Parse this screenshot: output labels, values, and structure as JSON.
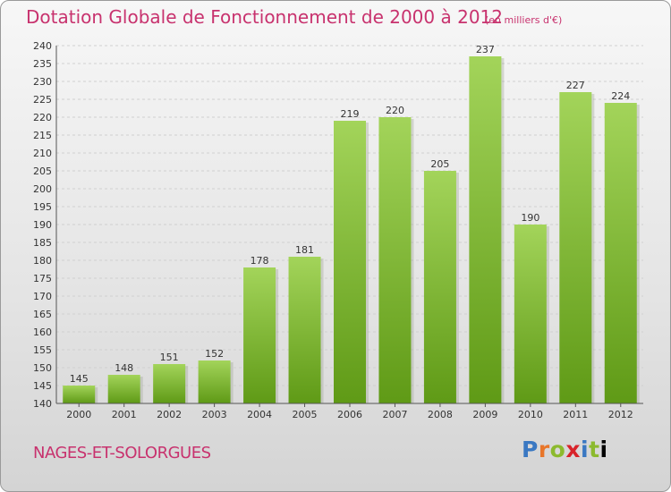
{
  "chart_data": {
    "type": "bar",
    "title": "Dotation Globale de Fonctionnement de 2000 à 2012",
    "unit_note": "(en milliers d'€)",
    "categories": [
      "2000",
      "2001",
      "2002",
      "2003",
      "2004",
      "2005",
      "2006",
      "2007",
      "2008",
      "2009",
      "2010",
      "2011",
      "2012"
    ],
    "values": [
      145,
      148,
      151,
      152,
      178,
      181,
      219,
      220,
      205,
      237,
      190,
      227,
      224
    ],
    "ylim": [
      140,
      240
    ],
    "ytick_step": 5,
    "grid": true,
    "legend": "none",
    "colors": {
      "bar_light": "#a3d45a",
      "bar_dark": "#5f9a16",
      "text_accent": "#c8326e"
    }
  },
  "footer": {
    "commune": "NAGES-ET-SOLORGUES",
    "logo_letters": [
      "P",
      "r",
      "o",
      "x",
      "i",
      "t",
      "i"
    ]
  }
}
